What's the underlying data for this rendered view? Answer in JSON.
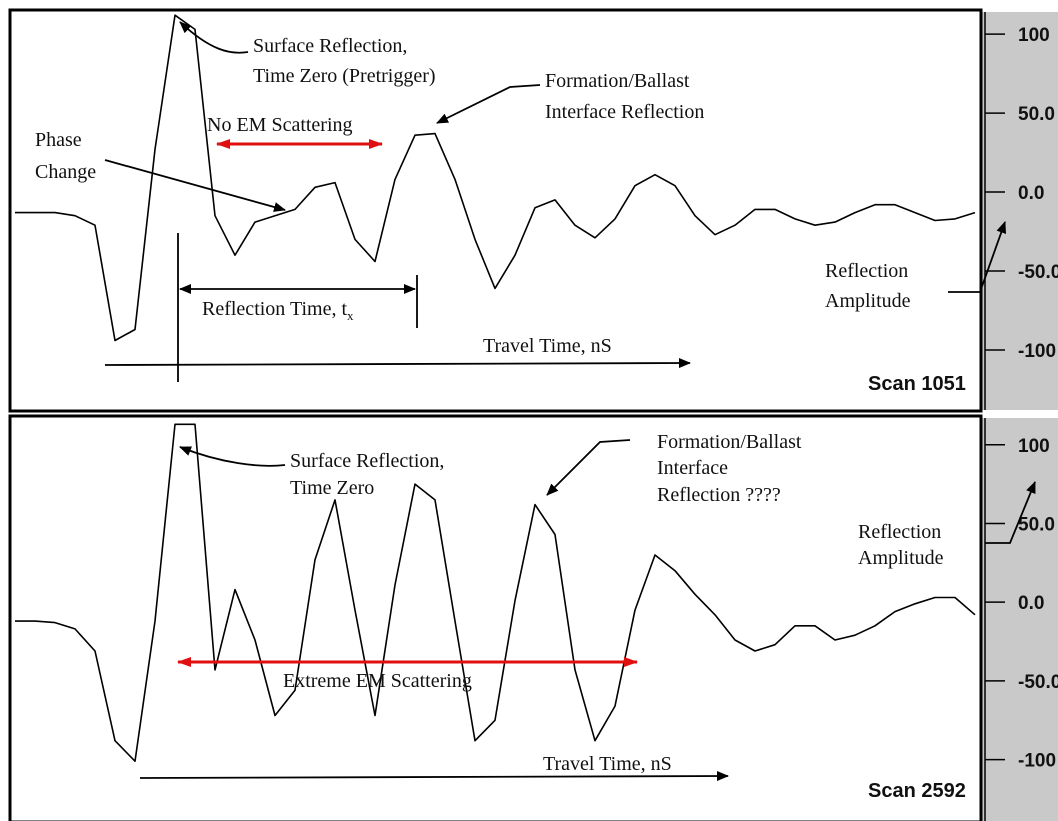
{
  "chart_data": [
    {
      "type": "line",
      "color": "#000000",
      "scan_label": "Scan 1051",
      "ylim": [
        -138,
        114
      ],
      "yticks": [
        {
          "value": 100,
          "label": "100"
        },
        {
          "value": 50,
          "label": "50.0"
        },
        {
          "value": 0,
          "label": "0.0"
        },
        {
          "value": -50,
          "label": "-50.0"
        },
        -100
      ],
      "values": [
        -13,
        -13,
        -13,
        -15,
        -21,
        -94,
        -87,
        27,
        112,
        103,
        -15,
        -40,
        -19,
        -15,
        -11,
        3,
        6,
        -30,
        -44,
        8,
        36,
        37,
        8,
        -30,
        -61,
        -40,
        -10,
        -5,
        -21,
        -29,
        -17,
        4,
        11,
        4,
        -15,
        -27,
        -21,
        -11,
        -11,
        -17,
        -21,
        -19,
        -13,
        -8,
        -8,
        -13,
        -18,
        -17,
        -13
      ],
      "annotations": [
        {
          "lines": [
            "Surface Reflection,",
            "Time Zero (Pretrigger)"
          ]
        },
        {
          "lines": [
            "Formation/Ballast",
            "Interface Reflection"
          ]
        },
        {
          "lines": [
            "No EM Scattering"
          ]
        },
        {
          "lines": [
            "Phase",
            "Change"
          ]
        },
        {
          "lines": [
            "Reflection Time, t"
          ],
          "subscript": "x"
        },
        {
          "lines": [
            "Travel Time, nS"
          ]
        },
        {
          "lines": [
            "Reflection",
            "Amplitude"
          ]
        }
      ]
    },
    {
      "type": "line",
      "color": "#000000",
      "scan_label": "Scan 2592",
      "ylim": [
        -139,
        117
      ],
      "yticks": [
        100,
        {
          "value": 50,
          "label": "50.0"
        },
        {
          "value": 0,
          "label": "0.0"
        },
        {
          "value": -50,
          "label": "-50.0"
        },
        -100
      ],
      "values": [
        -12,
        -12,
        -13,
        -17,
        -31,
        -88,
        -101,
        -12,
        113,
        113,
        -43,
        8,
        -24,
        -72,
        -56,
        27,
        65,
        -5,
        -72,
        11,
        75,
        65,
        -12,
        -88,
        -75,
        1,
        62,
        43,
        -43,
        -88,
        -66,
        -5,
        30,
        20,
        5,
        -8,
        -24,
        -31,
        -27,
        -15,
        -15,
        -24,
        -21,
        -15,
        -6,
        -1,
        3,
        3,
        -8
      ],
      "annotations": [
        {
          "lines": [
            "Surface Reflection,",
            "Time Zero"
          ]
        },
        {
          "lines": [
            "Formation/Ballast",
            "Interface",
            "Reflection ????"
          ]
        },
        {
          "lines": [
            "Reflection",
            "Amplitude"
          ]
        },
        {
          "lines": [
            "Extreme EM Scattering"
          ]
        },
        {
          "lines": [
            "Travel Time, nS"
          ]
        }
      ]
    }
  ]
}
